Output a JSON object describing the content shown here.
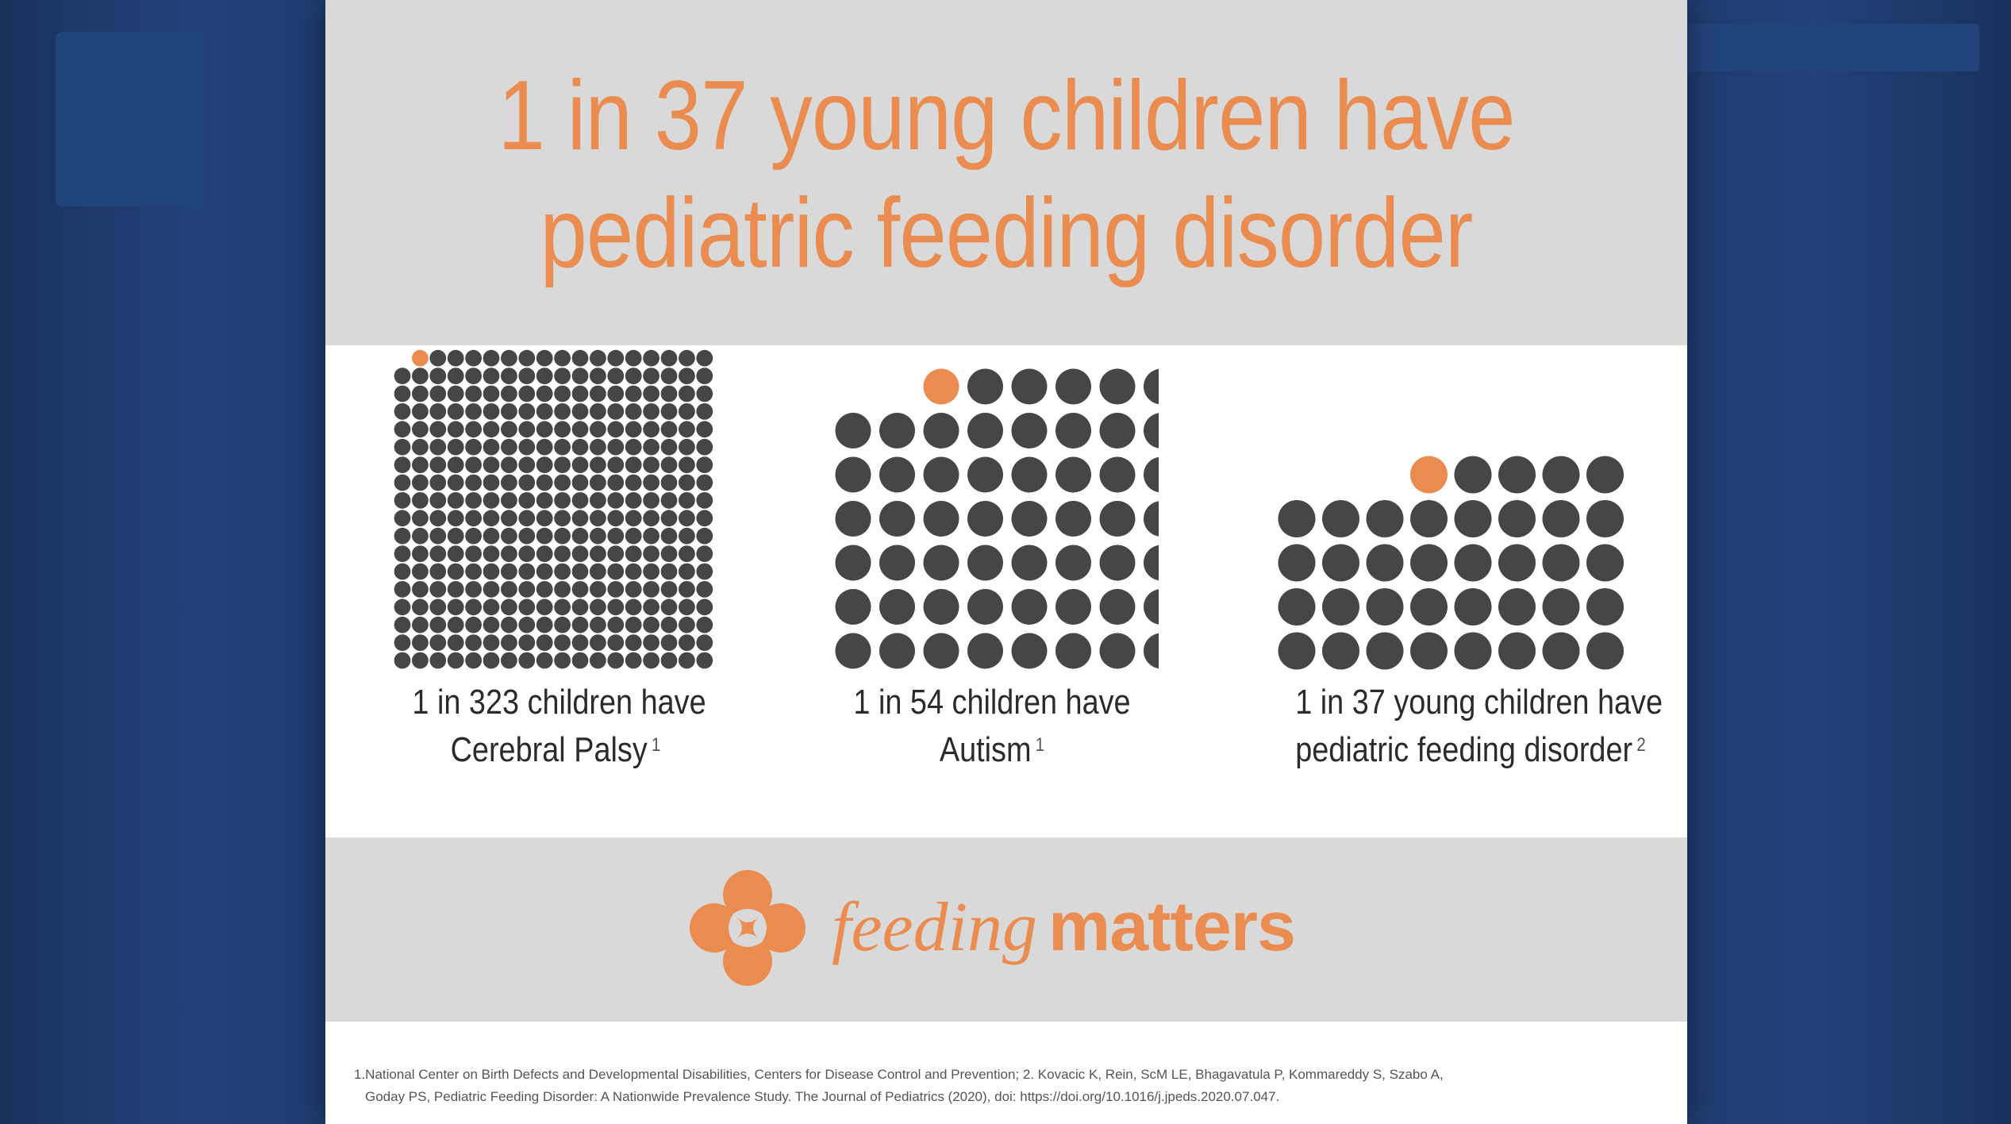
{
  "headline": {
    "line1": "1 in 37 young children have",
    "line2": "pediatric feeding disorder"
  },
  "stats": [
    {
      "line1": "1 in 323 children have",
      "line2": "Cerebral Palsy",
      "footnote_ref": "1",
      "ratio_total": 323,
      "highlighted": 1
    },
    {
      "line1": "1 in 54 children have",
      "line2": "Autism",
      "footnote_ref": "1",
      "ratio_total": 54,
      "highlighted": 1
    },
    {
      "line1": "1 in 37 young children have",
      "line2": "pediatric feeding disorder",
      "footnote_ref": "2",
      "ratio_total": 37,
      "highlighted": 1
    }
  ],
  "logo": {
    "word1": "feeding",
    "word2": "matters"
  },
  "footnote": {
    "line1": "1.National Center on Birth Defects and Developmental Disabilities, Centers for Disease Control and Prevention; 2. Kovacic K, Rein, ScM LE, Bhagavatula P, Kommareddy S, Szabo A,",
    "line2": "Goday PS, Pediatric Feeding Disorder: A Nationwide Prevalence Study. The Journal of Pediatrics (2020), doi: https://doi.org/10.1016/j.jpeds.2020.07.047."
  },
  "colors": {
    "accent": "#ea8c50",
    "dot": "#464646",
    "band": "#d9d9d9",
    "background": "#1d3866"
  }
}
